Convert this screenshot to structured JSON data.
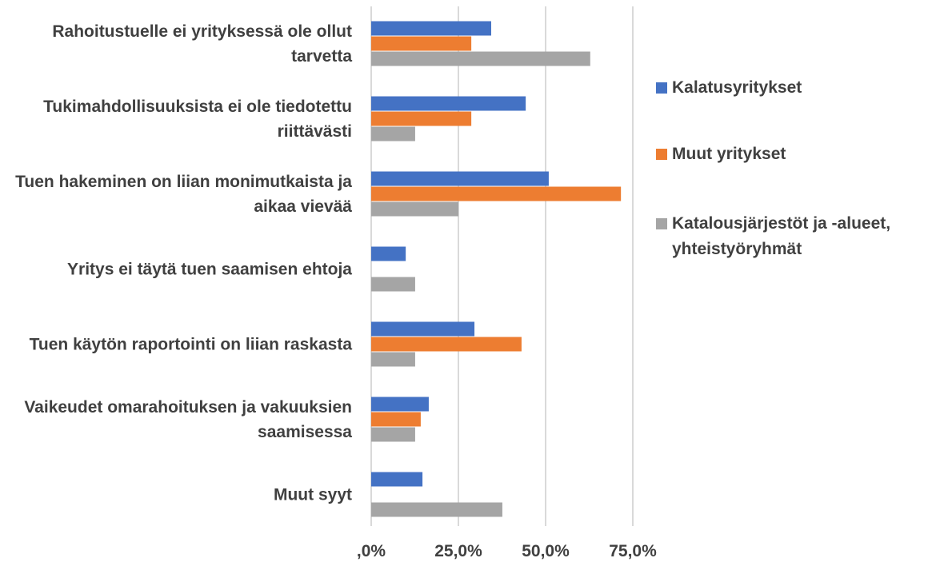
{
  "chart_data": {
    "type": "hbar",
    "categories": [
      "Rahoitustuelle ei yrityksessä ole ollut tarvetta",
      "Tukimahdollisuuksista ei ole tiedotettu riittävästi",
      "Tuen hakeminen on liian monimutkaista ja aikaa vievää",
      "Yritys ei täytä tuen saamisen ehtoja",
      "Tuen käytön raportointi on liian raskasta",
      "Vaikeudet omarahoituksen ja vakuuksien saamisessa",
      "Muut syyt"
    ],
    "series": [
      {
        "name": "Kalatusyritykset",
        "color": "#4472c4",
        "values": [
          34.4,
          44.3,
          50.9,
          9.9,
          29.6,
          16.5,
          14.7
        ]
      },
      {
        "name": "Muut yritykset",
        "color": "#ed7d31",
        "values": [
          28.7,
          28.7,
          71.6,
          null,
          43.1,
          14.2,
          null
        ]
      },
      {
        "name": "Katalousjärjestöt ja -alueet, yhteistyöryhmät",
        "color": "#a5a5a5",
        "values": [
          62.8,
          12.6,
          25.0,
          12.6,
          12.6,
          12.6,
          37.6
        ]
      }
    ],
    "xlim": [
      0,
      75
    ],
    "xticks": [
      {
        "value": 0,
        "label": ",0%"
      },
      {
        "value": 25,
        "label": "25,0%"
      },
      {
        "value": 50,
        "label": "50,0%"
      },
      {
        "value": 75,
        "label": "75,0%"
      }
    ],
    "grid": true
  }
}
